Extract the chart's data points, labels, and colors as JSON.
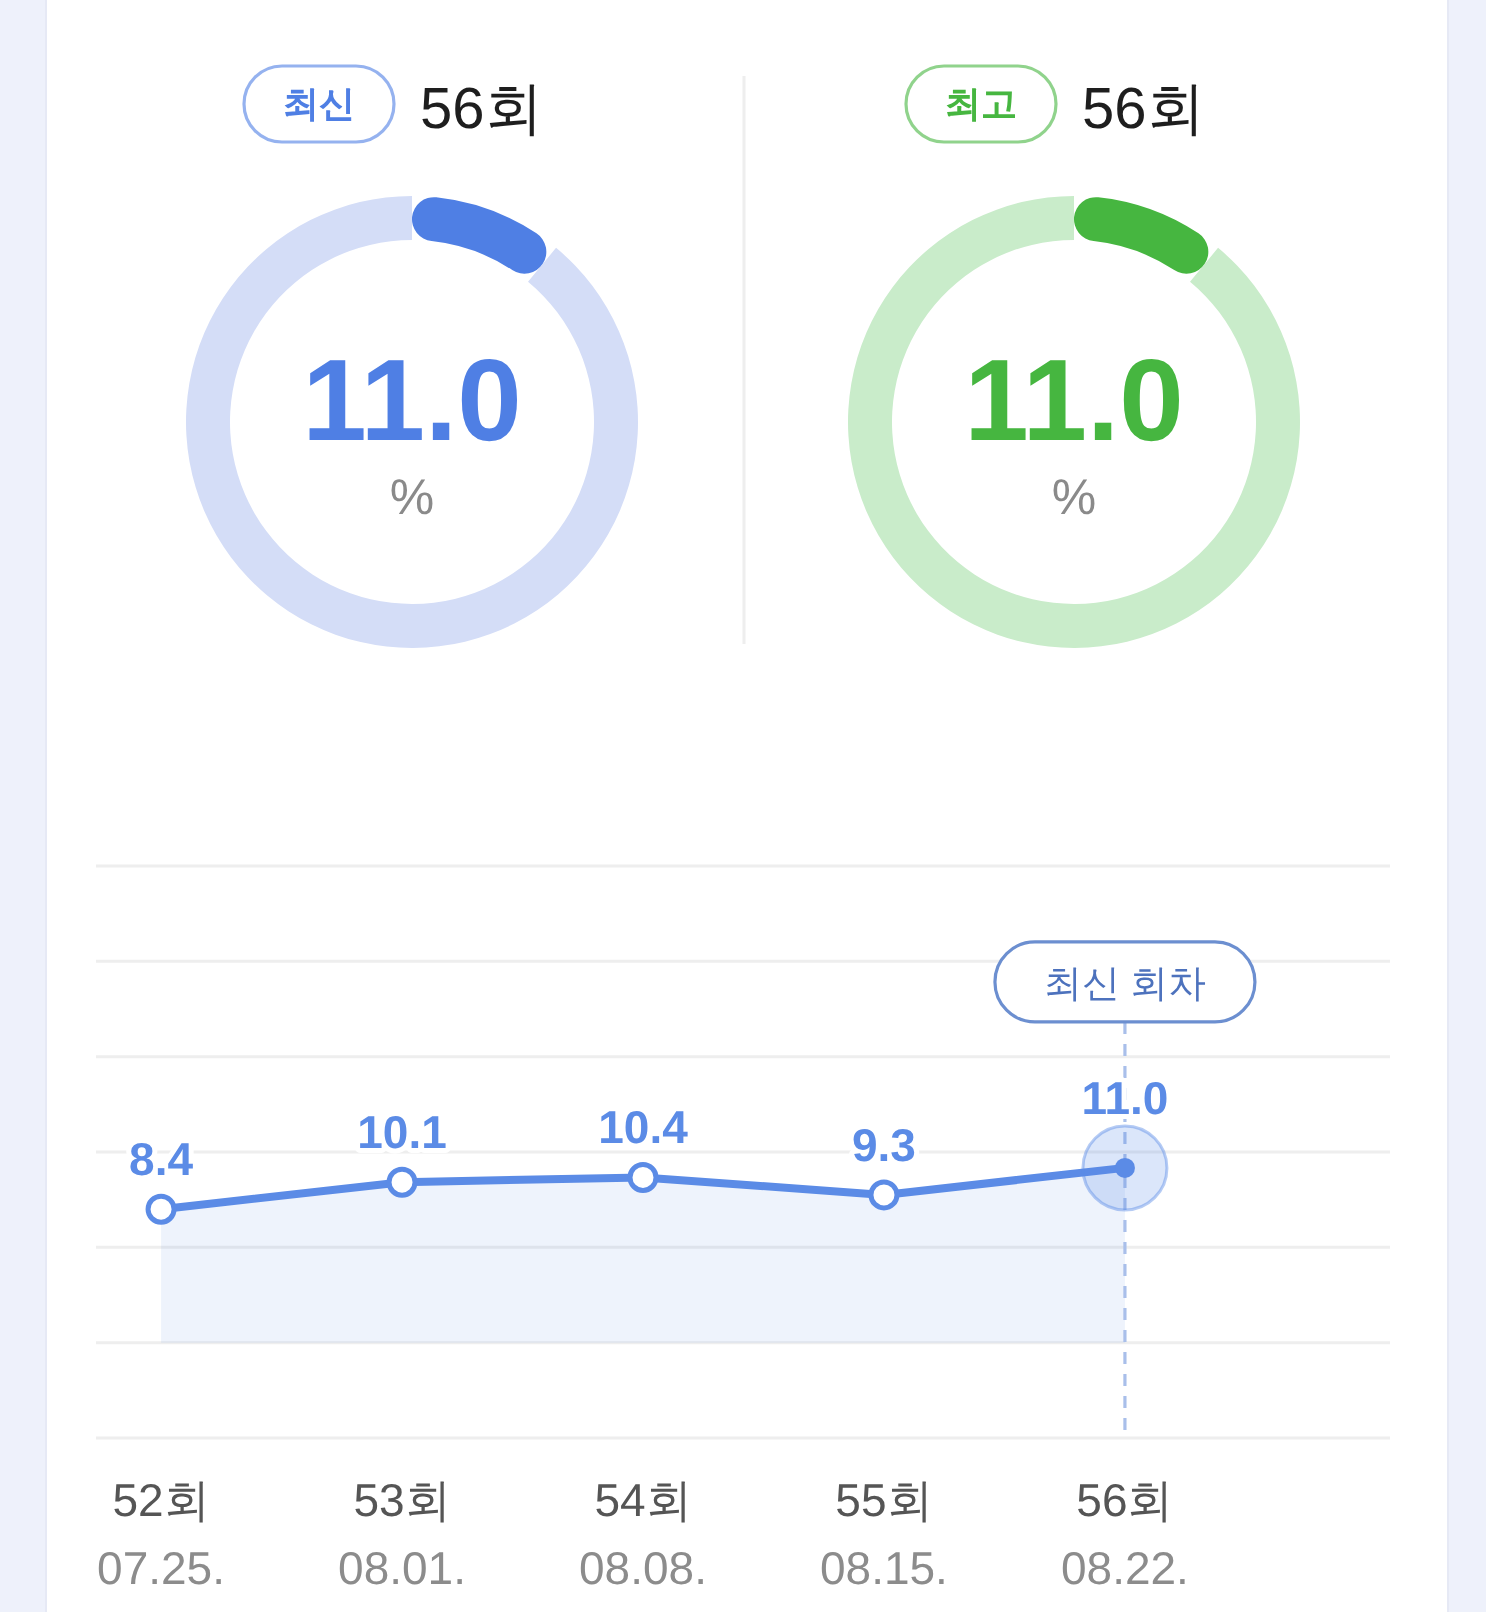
{
  "chart_data": [
    {
      "type": "donut",
      "subtitle": "최신",
      "title": "56회",
      "categories": [
        null,
        null
      ],
      "values": [
        11.0,
        89.0
      ],
      "colors": [
        "#4f7fe4",
        "#d4ddf7"
      ],
      "value_labels": [
        "11.0",
        null
      ],
      "annotations": [
        "%"
      ]
    },
    {
      "type": "donut",
      "subtitle": "최고",
      "title": "56회",
      "categories": [
        null,
        null
      ],
      "values": [
        11.0,
        89.0
      ],
      "colors": [
        "#46b640",
        "#c9ecca"
      ],
      "value_labels": [
        "11.0",
        null
      ],
      "annotations": [
        "%"
      ]
    },
    {
      "type": "area",
      "categories": [
        "52회\n07.25.",
        "53회\n08.01.",
        "54회\n08.08.",
        "55회\n08.15.",
        "56회\n08.22."
      ],
      "series": [
        {
          "color": "#5b8be6",
          "values": [
            8.4,
            10.1,
            10.4,
            9.3,
            11.0
          ],
          "value_labels": [
            "8.4",
            "10.1",
            "10.4",
            "9.3",
            "11.0"
          ]
        }
      ],
      "ylim": [
        -6,
        30
      ],
      "yticks": [
        {
          "value": -6,
          "label": null
        },
        {
          "value": 0,
          "label": null
        },
        {
          "value": 6,
          "label": null
        },
        {
          "value": 12,
          "label": null
        },
        {
          "value": 18,
          "label": null
        },
        {
          "value": 24,
          "label": null
        },
        {
          "value": 30,
          "label": null
        }
      ],
      "grid": "y",
      "tick_labels": "x",
      "marker": "circle",
      "ref_lines": [
        {
          "axis": "x",
          "value": "56회\n08.22.",
          "label": "최신 회차",
          "color": "#a9bfea",
          "line_style": "dashed"
        }
      ]
    }
  ]
}
